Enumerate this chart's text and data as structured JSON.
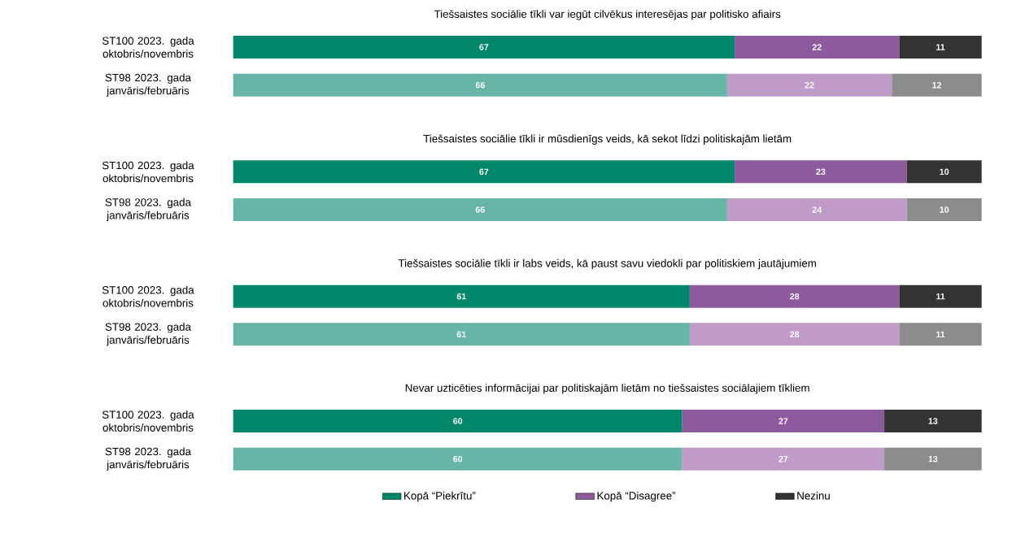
{
  "chart_data": [
    {
      "type": "bar",
      "orientation": "horizontal",
      "stacked": true,
      "data_labels": true,
      "tick_labels": "y",
      "xlim": [
        0,
        100
      ],
      "title": "Tiešsaistes sociālie tīkli var iegūt cilvēkus interesējas par politisko afiairs",
      "categories": [
        "ST100 2023. gada oktobris/novembris",
        "ST98 2023. gada janvāris/februāris"
      ],
      "series": [
        {
          "colors": [
            "#00876a",
            "#66b5a6"
          ],
          "values": [
            67,
            66
          ]
        },
        {
          "colors": [
            "#8e5a9e",
            "#c09bc8"
          ],
          "values": [
            22,
            22
          ]
        },
        {
          "colors": [
            "#333333",
            "#8c8c8c"
          ],
          "values": [
            11,
            12
          ]
        }
      ]
    },
    {
      "type": "bar",
      "orientation": "horizontal",
      "stacked": true,
      "data_labels": true,
      "tick_labels": "y",
      "xlim": [
        0,
        100
      ],
      "title": "Tiešsaistes sociālie tīkli ir mūsdienīgs veids, kā sekot līdzi politiskajām lietām",
      "categories": [
        "ST100 2023. gada oktobris/novembris",
        "ST98 2023. gada janvāris/februāris"
      ],
      "series": [
        {
          "colors": [
            "#00876a",
            "#66b5a6"
          ],
          "values": [
            67,
            66
          ]
        },
        {
          "colors": [
            "#8e5a9e",
            "#c09bc8"
          ],
          "values": [
            23,
            24
          ]
        },
        {
          "colors": [
            "#333333",
            "#8c8c8c"
          ],
          "values": [
            10,
            10
          ]
        }
      ]
    },
    {
      "type": "bar",
      "orientation": "horizontal",
      "stacked": true,
      "data_labels": true,
      "tick_labels": "y",
      "xlim": [
        0,
        100
      ],
      "title": "Tiešsaistes sociālie tīkli ir labs veids, kā paust savu viedokli par politiskiem jautājumiem",
      "categories": [
        "ST100 2023. gada oktobris/novembris",
        "ST98 2023. gada janvāris/februāris"
      ],
      "series": [
        {
          "colors": [
            "#00876a",
            "#66b5a6"
          ],
          "values": [
            61,
            61
          ]
        },
        {
          "colors": [
            "#8e5a9e",
            "#c09bc8"
          ],
          "values": [
            28,
            28
          ]
        },
        {
          "colors": [
            "#333333",
            "#8c8c8c"
          ],
          "values": [
            11,
            11
          ]
        }
      ]
    },
    {
      "type": "bar",
      "orientation": "horizontal",
      "stacked": true,
      "data_labels": true,
      "tick_labels": "y",
      "xlim": [
        0,
        100
      ],
      "legend": "bottom",
      "title": "Nevar uzticēties informācijai par politiskajām lietām no tiešsaistes sociālajiem tīkliem",
      "categories": [
        "ST100 2023. gada oktobris/novembris",
        "ST98 2023. gada janvāris/februāris"
      ],
      "series": [
        {
          "name": "Kopā “Piekrītu”",
          "color": "#00876a",
          "colors": [
            "#00876a",
            "#66b5a6"
          ],
          "values": [
            60,
            60
          ]
        },
        {
          "name": "Kopā “Disagree”",
          "color": "#8e5a9e",
          "colors": [
            "#8e5a9e",
            "#c09bc8"
          ],
          "values": [
            27,
            27
          ]
        },
        {
          "name": "Nezinu",
          "color": "#333333",
          "colors": [
            "#333333",
            "#8c8c8c"
          ],
          "values": [
            13,
            13
          ]
        }
      ]
    }
  ]
}
